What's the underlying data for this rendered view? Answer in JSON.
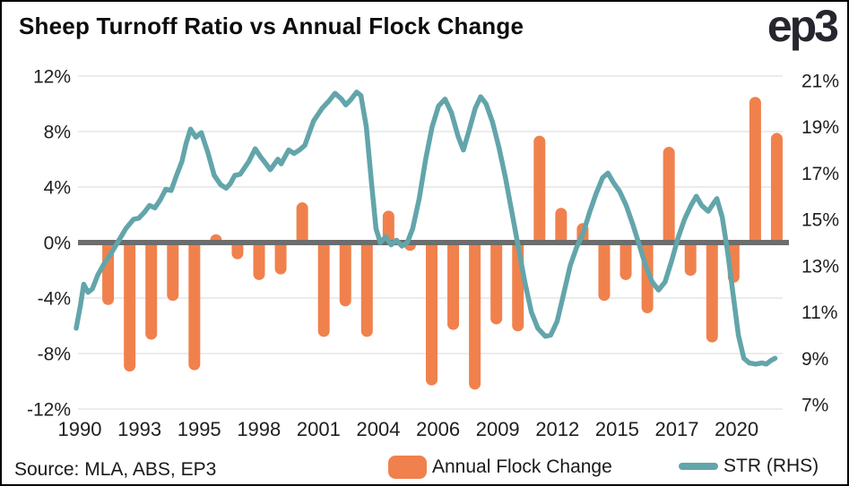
{
  "header": {
    "title": "Sheep Turnoff Ratio vs Annual Flock Change",
    "logo_text": "ep3"
  },
  "footer": {
    "source": "Source: MLA, ABS, EP3"
  },
  "legend": {
    "bars_label": "Annual Flock Change",
    "line_label": "STR (RHS)"
  },
  "colors": {
    "bar": "#F0814D",
    "line": "#62A5AA",
    "zero_line": "#6D6D6D",
    "gridline": "#E6E6E6",
    "axis_text": "#1f1f1f",
    "logo": "#26262e"
  },
  "chart_data": {
    "type": "bar",
    "subtype": "bar-line-combo",
    "title": "Sheep Turnoff Ratio vs Annual Flock Change",
    "left_axis": {
      "label": "Annual Flock Change",
      "tick_labels": [
        "12%",
        "8%",
        "4%",
        "0%",
        "-4%",
        "-8%",
        "-12%"
      ],
      "tick_values": [
        12,
        8,
        4,
        0,
        -4,
        -8,
        -12
      ],
      "range": [
        -12,
        12
      ],
      "grid": true
    },
    "right_axis": {
      "label": "STR (RHS)",
      "tick_labels": [
        "21%",
        "19%",
        "17%",
        "15%",
        "13%",
        "11%",
        "9%",
        "7%"
      ],
      "tick_values": [
        21,
        19,
        17,
        15,
        13,
        11,
        9,
        7
      ],
      "range": [
        7,
        21
      ]
    },
    "x_axis": {
      "tick_labels": [
        "1990",
        "1993",
        "1995",
        "1998",
        "2001",
        "2004",
        "2006",
        "2009",
        "2012",
        "2015",
        "2017",
        "2020"
      ]
    },
    "legend_position": "bottom",
    "series": [
      {
        "name": "Annual Flock Change",
        "type": "bar",
        "axis": "left",
        "unit": "%",
        "years": [
          1991,
          1992,
          1993,
          1994,
          1995,
          1996,
          1997,
          1998,
          1999,
          2000,
          2001,
          2002,
          2003,
          2004,
          2005,
          2006,
          2007,
          2008,
          2009,
          2010,
          2011,
          2012,
          2013,
          2014,
          2015,
          2016,
          2017,
          2018,
          2019,
          2020,
          2021,
          2022
        ],
        "values": [
          -4.5,
          -9.3,
          -7.0,
          -4.2,
          -9.2,
          0.6,
          -1.2,
          -2.7,
          -2.3,
          2.9,
          -6.8,
          -4.6,
          -6.8,
          2.3,
          -0.6,
          -10.3,
          -6.3,
          -10.6,
          -5.9,
          -6.4,
          7.7,
          2.5,
          1.4,
          -4.2,
          -2.7,
          -5.1,
          6.9,
          -2.4,
          -7.2,
          -2.9,
          10.5,
          7.9
        ]
      },
      {
        "name": "STR (RHS)",
        "type": "line",
        "axis": "right",
        "unit": "%",
        "points": [
          [
            1990.0,
            10.3
          ],
          [
            1990.2,
            11.3
          ],
          [
            1990.35,
            12.2
          ],
          [
            1990.55,
            11.85
          ],
          [
            1990.75,
            12.0
          ],
          [
            1991.0,
            12.6
          ],
          [
            1991.3,
            13.1
          ],
          [
            1991.6,
            13.5
          ],
          [
            1991.95,
            14.05
          ],
          [
            1992.3,
            14.6
          ],
          [
            1992.65,
            15.0
          ],
          [
            1992.9,
            15.05
          ],
          [
            1993.15,
            15.3
          ],
          [
            1993.4,
            15.6
          ],
          [
            1993.65,
            15.5
          ],
          [
            1993.9,
            15.85
          ],
          [
            1994.15,
            16.3
          ],
          [
            1994.4,
            16.25
          ],
          [
            1994.65,
            16.9
          ],
          [
            1994.9,
            17.5
          ],
          [
            1995.1,
            18.3
          ],
          [
            1995.3,
            18.9
          ],
          [
            1995.55,
            18.55
          ],
          [
            1995.8,
            18.75
          ],
          [
            1996.1,
            17.9
          ],
          [
            1996.4,
            16.9
          ],
          [
            1996.7,
            16.5
          ],
          [
            1996.95,
            16.35
          ],
          [
            1997.15,
            16.55
          ],
          [
            1997.35,
            16.9
          ],
          [
            1997.6,
            16.95
          ],
          [
            1998.0,
            17.5
          ],
          [
            1998.3,
            18.05
          ],
          [
            1998.55,
            17.7
          ],
          [
            1998.8,
            17.4
          ],
          [
            1999.0,
            17.15
          ],
          [
            1999.35,
            17.6
          ],
          [
            1999.5,
            17.4
          ],
          [
            1999.85,
            18.0
          ],
          [
            2000.1,
            17.85
          ],
          [
            2000.35,
            18.0
          ],
          [
            2000.6,
            18.2
          ],
          [
            2001.0,
            19.25
          ],
          [
            2001.4,
            19.8
          ],
          [
            2001.7,
            20.1
          ],
          [
            2002.0,
            20.45
          ],
          [
            2002.3,
            20.2
          ],
          [
            2002.5,
            19.95
          ],
          [
            2002.75,
            20.2
          ],
          [
            2003.0,
            20.5
          ],
          [
            2003.2,
            20.35
          ],
          [
            2003.45,
            19.0
          ],
          [
            2003.7,
            16.5
          ],
          [
            2003.9,
            14.6
          ],
          [
            2004.1,
            14.0
          ],
          [
            2004.35,
            14.25
          ],
          [
            2004.6,
            13.9
          ],
          [
            2004.85,
            14.1
          ],
          [
            2005.1,
            13.85
          ],
          [
            2005.35,
            14.0
          ],
          [
            2005.6,
            14.6
          ],
          [
            2005.9,
            15.9
          ],
          [
            2006.2,
            17.6
          ],
          [
            2006.5,
            19.0
          ],
          [
            2006.8,
            19.9
          ],
          [
            2007.1,
            20.2
          ],
          [
            2007.4,
            19.6
          ],
          [
            2007.7,
            18.6
          ],
          [
            2007.95,
            18.0
          ],
          [
            2008.2,
            18.8
          ],
          [
            2008.5,
            19.8
          ],
          [
            2008.75,
            20.3
          ],
          [
            2009.0,
            20.0
          ],
          [
            2009.3,
            19.2
          ],
          [
            2009.6,
            18.1
          ],
          [
            2009.9,
            16.8
          ],
          [
            2010.2,
            15.3
          ],
          [
            2010.5,
            13.8
          ],
          [
            2010.8,
            12.3
          ],
          [
            2011.1,
            11.0
          ],
          [
            2011.4,
            10.3
          ],
          [
            2011.75,
            9.95
          ],
          [
            2012.0,
            10.0
          ],
          [
            2012.3,
            10.6
          ],
          [
            2012.6,
            11.8
          ],
          [
            2012.9,
            13.0
          ],
          [
            2013.2,
            13.8
          ],
          [
            2013.5,
            14.4
          ],
          [
            2013.8,
            15.3
          ],
          [
            2014.1,
            16.1
          ],
          [
            2014.4,
            16.8
          ],
          [
            2014.65,
            17.0
          ],
          [
            2014.9,
            16.6
          ],
          [
            2015.2,
            16.2
          ],
          [
            2015.5,
            15.6
          ],
          [
            2015.8,
            14.8
          ],
          [
            2016.1,
            13.9
          ],
          [
            2016.4,
            13.0
          ],
          [
            2016.7,
            12.3
          ],
          [
            2017.0,
            11.95
          ],
          [
            2017.3,
            12.3
          ],
          [
            2017.6,
            13.2
          ],
          [
            2017.9,
            14.2
          ],
          [
            2018.2,
            15.0
          ],
          [
            2018.5,
            15.6
          ],
          [
            2018.75,
            16.0
          ],
          [
            2019.0,
            15.6
          ],
          [
            2019.3,
            15.35
          ],
          [
            2019.55,
            15.7
          ],
          [
            2019.7,
            15.9
          ],
          [
            2019.95,
            15.1
          ],
          [
            2020.2,
            13.6
          ],
          [
            2020.45,
            11.8
          ],
          [
            2020.7,
            10.0
          ],
          [
            2020.95,
            9.0
          ],
          [
            2021.2,
            8.8
          ],
          [
            2021.5,
            8.75
          ],
          [
            2021.8,
            8.8
          ],
          [
            2022.0,
            8.75
          ],
          [
            2022.2,
            8.9
          ],
          [
            2022.4,
            9.0
          ]
        ]
      }
    ]
  }
}
